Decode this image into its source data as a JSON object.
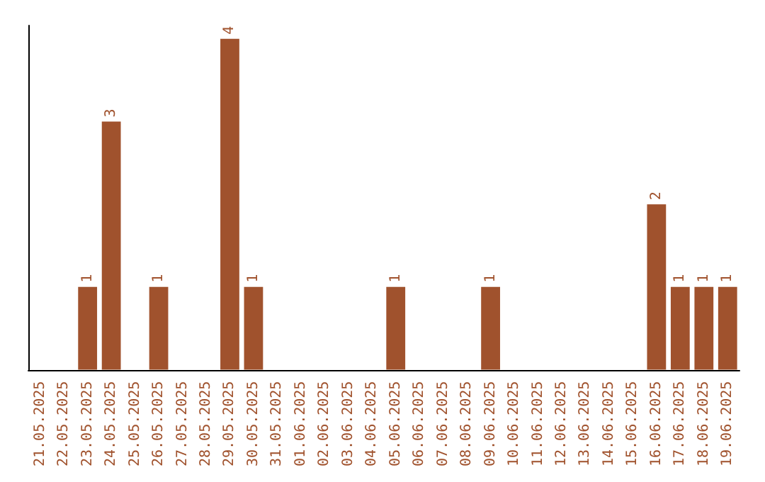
{
  "chart_data": {
    "type": "bar",
    "categories": [
      "21.05.2025",
      "22.05.2025",
      "23.05.2025",
      "24.05.2025",
      "25.05.2025",
      "26.05.2025",
      "27.05.2025",
      "28.05.2025",
      "29.05.2025",
      "30.05.2025",
      "31.05.2025",
      "01.06.2025",
      "02.06.2025",
      "03.06.2025",
      "04.06.2025",
      "05.06.2025",
      "06.06.2025",
      "07.06.2025",
      "08.06.2025",
      "09.06.2025",
      "10.06.2025",
      "11.06.2025",
      "12.06.2025",
      "13.06.2025",
      "14.06.2025",
      "15.06.2025",
      "16.06.2025",
      "17.06.2025",
      "18.06.2025",
      "19.06.2025"
    ],
    "values": [
      0,
      0,
      1,
      3,
      0,
      1,
      0,
      0,
      4,
      1,
      0,
      0,
      0,
      0,
      0,
      1,
      0,
      0,
      0,
      1,
      0,
      0,
      0,
      0,
      0,
      0,
      2,
      1,
      1,
      1
    ],
    "value_labels": [
      null,
      null,
      "1",
      "3",
      null,
      "1",
      null,
      null,
      "4",
      "1",
      null,
      null,
      null,
      null,
      null,
      "1",
      null,
      null,
      null,
      "1",
      null,
      null,
      null,
      null,
      null,
      null,
      "2",
      "1",
      "1",
      "1"
    ],
    "color": "#a0522d"
  }
}
